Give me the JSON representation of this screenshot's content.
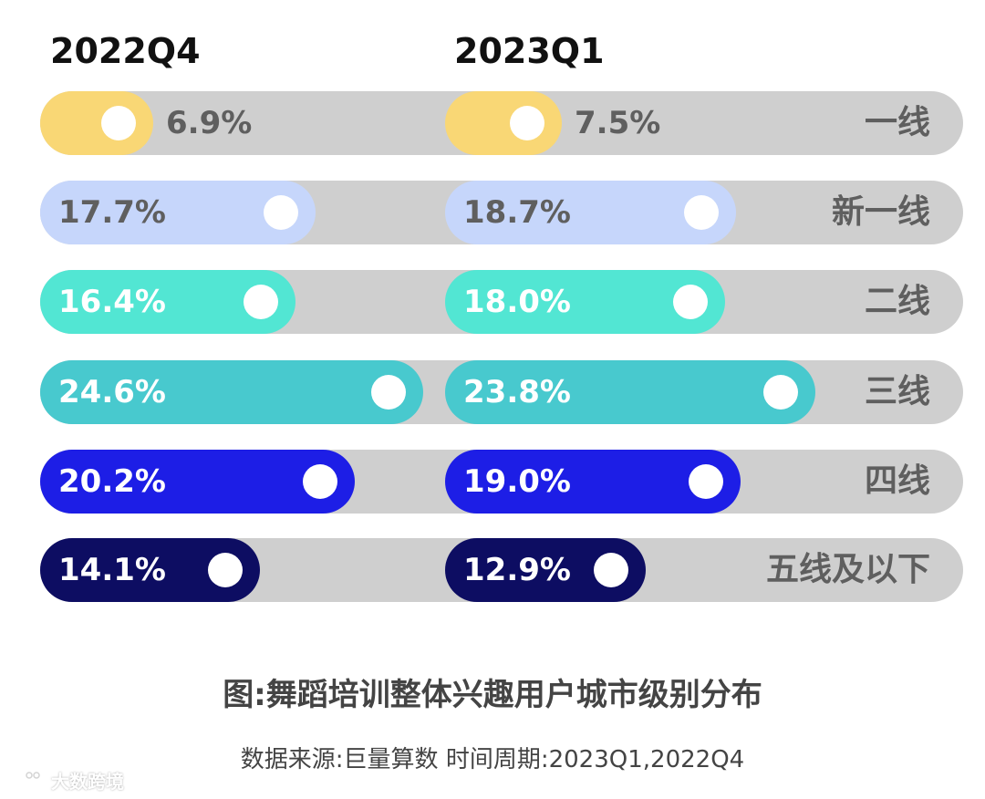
{
  "chart_data": {
    "type": "bar",
    "periods": [
      "2022Q4",
      "2023Q1"
    ],
    "categories": [
      "一线",
      "新一线",
      "二线",
      "三线",
      "四线",
      "五线及以下"
    ],
    "series": [
      {
        "name": "2022Q4",
        "values": [
          6.9,
          17.7,
          16.4,
          24.6,
          20.2,
          14.1
        ],
        "labels": [
          "6.9%",
          "17.7%",
          "16.4%",
          "24.6%",
          "20.2%",
          "14.1%"
        ]
      },
      {
        "name": "2023Q1",
        "values": [
          7.5,
          18.7,
          18.0,
          23.8,
          19.0,
          12.9
        ],
        "labels": [
          "7.5%",
          "18.7%",
          "18.0%",
          "23.8%",
          "19.0%",
          "12.9%"
        ]
      }
    ],
    "colors": [
      "#f9d775",
      "#c6d6fb",
      "#52e6d3",
      "#48c9ce",
      "#1d1ee6",
      "#0d0d62"
    ],
    "track_color": "#cfcfcf",
    "value_text_colors": [
      "#5f5f5f",
      "#5f5f5f",
      "#ffffff",
      "#ffffff",
      "#ffffff",
      "#ffffff"
    ]
  },
  "caption": "图:舞蹈培训整体兴趣用户城市级别分布",
  "source": "数据来源:巨量算数    时间周期:2023Q1,2022Q4",
  "watermark": "大数跨境"
}
